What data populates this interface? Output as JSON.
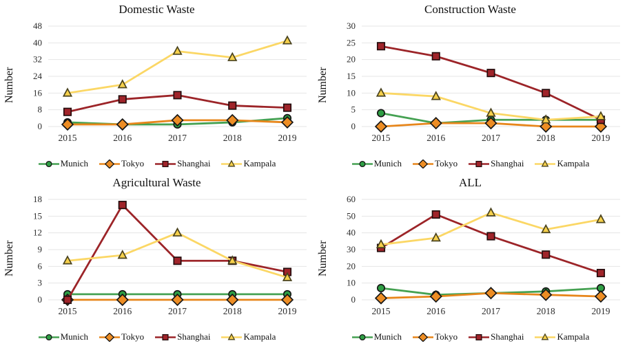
{
  "page": {
    "background": "#ffffff"
  },
  "axis_style": {
    "grid_color": "#e4e4e4",
    "tick_color": "#2d2d2d",
    "title_color": "#101010"
  },
  "series_style": [
    {
      "name": "Munich",
      "marker": "circle",
      "line_color": "#45a152",
      "fill_color": "#2e9e44",
      "stroke_color": "#161616"
    },
    {
      "name": "Tokyo",
      "marker": "diamond",
      "line_color": "#e7861b",
      "fill_color": "#ed8d24",
      "stroke_color": "#161616"
    },
    {
      "name": "Shanghai",
      "marker": "square",
      "line_color": "#9c2428",
      "fill_color": "#a0242a",
      "stroke_color": "#250d0e"
    },
    {
      "name": "Kampala",
      "marker": "triangle",
      "line_color": "#fbd765",
      "fill_color": "#f6d04b",
      "stroke_color": "#4a431f"
    }
  ],
  "chart_data": [
    {
      "type": "line",
      "title": "Domestic Waste",
      "xlabel": "",
      "ylabel": "Number",
      "categories": [
        "2015",
        "2016",
        "2017",
        "2018",
        "2019"
      ],
      "ylim": [
        0,
        48
      ],
      "ystep": 8,
      "grid": true,
      "legend_position": "bottom",
      "series": [
        {
          "name": "Munich",
          "values": [
            2,
            1,
            1,
            2,
            4
          ]
        },
        {
          "name": "Tokyo",
          "values": [
            1,
            1,
            3,
            3,
            2
          ]
        },
        {
          "name": "Shanghai",
          "values": [
            7,
            13,
            15,
            10,
            9
          ]
        },
        {
          "name": "Kampala",
          "values": [
            16,
            20,
            36,
            33,
            41
          ]
        }
      ]
    },
    {
      "type": "line",
      "title": "Construction Waste",
      "xlabel": "",
      "ylabel": "Number",
      "categories": [
        "2015",
        "2016",
        "2017",
        "2018",
        "2019"
      ],
      "ylim": [
        0,
        30
      ],
      "ystep": 5,
      "grid": true,
      "legend_position": "bottom",
      "series": [
        {
          "name": "Munich",
          "values": [
            4,
            1,
            2,
            2,
            2
          ]
        },
        {
          "name": "Tokyo",
          "values": [
            0,
            1,
            1,
            0,
            0
          ]
        },
        {
          "name": "Shanghai",
          "values": [
            24,
            21,
            16,
            10,
            2
          ]
        },
        {
          "name": "Kampala",
          "values": [
            10,
            9,
            4,
            2,
            3
          ]
        }
      ]
    },
    {
      "type": "line",
      "title": "Agricultural Waste",
      "xlabel": "",
      "ylabel": "Number",
      "categories": [
        "2015",
        "2016",
        "2017",
        "2018",
        "2019"
      ],
      "ylim": [
        0,
        18
      ],
      "ystep": 3,
      "grid": true,
      "legend_position": "bottom",
      "series": [
        {
          "name": "Munich",
          "values": [
            1,
            1,
            1,
            1,
            1
          ]
        },
        {
          "name": "Tokyo",
          "values": [
            0,
            0,
            0,
            0,
            0
          ]
        },
        {
          "name": "Shanghai",
          "values": [
            0,
            17,
            7,
            7,
            5
          ]
        },
        {
          "name": "Kampala",
          "values": [
            7,
            8,
            12,
            7,
            4
          ]
        }
      ]
    },
    {
      "type": "line",
      "title": "ALL",
      "xlabel": "",
      "ylabel": "Number",
      "categories": [
        "2015",
        "2016",
        "2017",
        "2018",
        "2019"
      ],
      "ylim": [
        0,
        60
      ],
      "ystep": 10,
      "grid": true,
      "legend_position": "bottom",
      "series": [
        {
          "name": "Munich",
          "values": [
            7,
            3,
            4,
            5,
            7
          ]
        },
        {
          "name": "Tokyo",
          "values": [
            1,
            2,
            4,
            3,
            2
          ]
        },
        {
          "name": "Shanghai",
          "values": [
            31,
            51,
            38,
            27,
            16
          ]
        },
        {
          "name": "Kampala",
          "values": [
            33,
            37,
            52,
            42,
            48
          ]
        }
      ]
    }
  ]
}
